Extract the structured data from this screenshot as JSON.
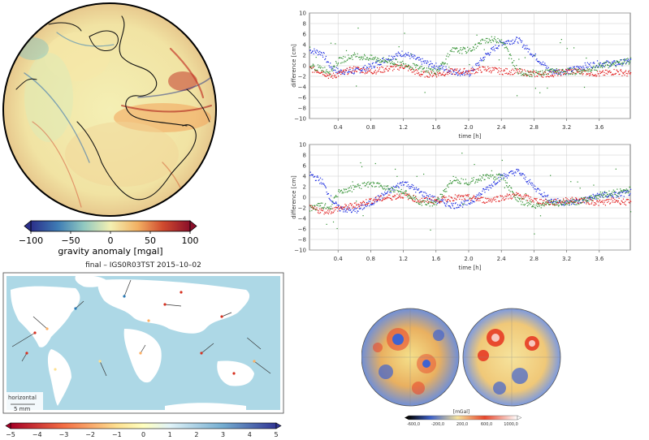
{
  "gravity_globe": {
    "colorbar_ticks": [
      "−100",
      "−50",
      "0",
      "50",
      "100"
    ],
    "colorbar_label": "gravity anomaly [mgal]",
    "colors": [
      "#2b2f8a",
      "#3e7cb5",
      "#8fc8c0",
      "#f3f0b2",
      "#f2b163",
      "#d04a2e",
      "#8b0f2a"
    ]
  },
  "chart_top": {
    "ylabel": "difference [cm]",
    "xlabel": "time [h]",
    "y_ticks": [
      "10",
      "8",
      "6",
      "4",
      "2",
      "0",
      "−2",
      "−4",
      "−6",
      "−8",
      "−10"
    ],
    "x_ticks": [
      "0.4",
      "0.8",
      "1.2",
      "1.6",
      "2.0",
      "2.4",
      "2.8",
      "3.2",
      "3.6"
    ]
  },
  "chart_bottom": {
    "ylabel": "difference [cm]",
    "xlabel": "time [h]",
    "y_ticks": [
      "10",
      "8",
      "6",
      "4",
      "2",
      "0",
      "−2",
      "−4",
      "−6",
      "−8",
      "−10"
    ],
    "x_ticks": [
      "0.4",
      "0.8",
      "1.2",
      "1.6",
      "2.0",
      "2.4",
      "2.8",
      "3.2",
      "3.6"
    ]
  },
  "chart_data": [
    {
      "type": "scatter",
      "ylabel": "difference [cm]",
      "xlabel": "time [h]",
      "xlim": [
        0.05,
        3.98
      ],
      "ylim": [
        -10,
        10
      ],
      "grid": true,
      "series": [
        {
          "color": "#1f2fe0",
          "x": [
            0.05,
            0.2,
            0.3,
            0.4,
            0.6,
            0.8,
            1.0,
            1.2,
            1.4,
            1.6,
            1.8,
            2.0,
            2.2,
            2.4,
            2.6,
            2.8,
            3.0,
            3.2,
            3.4,
            3.6,
            3.8,
            3.98
          ],
          "y": [
            3,
            2.5,
            0,
            -1,
            -1,
            0,
            1.5,
            2.5,
            1,
            0,
            -1,
            -1.5,
            2,
            4.5,
            5,
            2,
            -1,
            -1,
            0,
            0.5,
            0.5,
            1
          ]
        },
        {
          "color": "#e01b1b",
          "x": [
            0.05,
            0.2,
            0.3,
            0.4,
            0.6,
            0.8,
            1.0,
            1.2,
            1.4,
            1.6,
            1.8,
            2.0,
            2.2,
            2.4,
            2.6,
            2.8,
            3.0,
            3.2,
            3.4,
            3.6,
            3.8,
            3.98
          ],
          "y": [
            -0.5,
            -1,
            -2,
            -1.5,
            -0.5,
            -1,
            -0.5,
            0,
            -1.5,
            -1.5,
            -1,
            -1,
            -0.5,
            -1,
            -1,
            -1.5,
            -1.5,
            -1,
            -1,
            -1.5,
            -1,
            -1.5
          ]
        },
        {
          "color": "#2f8f2f",
          "x": [
            0.05,
            0.2,
            0.3,
            0.4,
            0.6,
            0.8,
            1.0,
            1.2,
            1.4,
            1.6,
            1.8,
            2.0,
            2.2,
            2.4,
            2.6,
            2.8,
            3.0,
            3.2,
            3.4,
            3.6,
            3.8,
            3.98
          ],
          "y": [
            0,
            -0.5,
            -1,
            1,
            2,
            1.5,
            1,
            0.5,
            -0.5,
            -1,
            3,
            3,
            5,
            5,
            -1,
            -1.5,
            -1,
            -1,
            -1,
            0,
            0.5,
            1
          ]
        }
      ]
    },
    {
      "type": "scatter",
      "ylabel": "difference [cm]",
      "xlabel": "time [h]",
      "xlim": [
        0.05,
        3.98
      ],
      "ylim": [
        -10,
        10
      ],
      "grid": true,
      "series": [
        {
          "color": "#1f2fe0",
          "x": [
            0.05,
            0.2,
            0.3,
            0.4,
            0.6,
            0.8,
            1.0,
            1.2,
            1.4,
            1.6,
            1.8,
            2.0,
            2.2,
            2.4,
            2.6,
            2.8,
            3.0,
            3.2,
            3.4,
            3.6,
            3.8,
            3.98
          ],
          "y": [
            4.5,
            3,
            0,
            -2,
            -2.5,
            -1,
            1,
            3,
            1,
            -0.5,
            -1.5,
            -1,
            1.5,
            4,
            5,
            2,
            -0.5,
            -1,
            -0.5,
            0.5,
            0.5,
            1
          ]
        },
        {
          "color": "#e01b1b",
          "x": [
            0.05,
            0.2,
            0.3,
            0.4,
            0.6,
            0.8,
            1.0,
            1.2,
            1.4,
            1.6,
            1.8,
            2.0,
            2.2,
            2.4,
            2.6,
            2.8,
            3.0,
            3.2,
            3.4,
            3.6,
            3.8,
            3.98
          ],
          "y": [
            -2,
            -2.5,
            -2.5,
            -2,
            -1.5,
            -0.5,
            0,
            0.5,
            -0.5,
            -0.5,
            0,
            0,
            -0.5,
            0,
            0.5,
            -0.5,
            -1,
            -0.5,
            -0.5,
            -1,
            -0.5,
            -1
          ]
        },
        {
          "color": "#2f8f2f",
          "x": [
            0.05,
            0.2,
            0.3,
            0.4,
            0.6,
            0.8,
            1.0,
            1.2,
            1.4,
            1.6,
            1.8,
            2.0,
            2.2,
            2.4,
            2.6,
            2.8,
            3.0,
            3.2,
            3.4,
            3.6,
            3.8,
            3.98
          ],
          "y": [
            -2,
            -1.5,
            -2,
            1,
            2,
            2.5,
            2,
            1,
            -1,
            -1,
            3.5,
            3,
            4,
            4,
            -0.5,
            -1.5,
            -1,
            -1,
            -0.5,
            0.5,
            1,
            1.5
          ]
        }
      ]
    }
  ],
  "velocity_map": {
    "title": "final – IGS0R03TST 2015–10–02",
    "legend_label": "horizontal",
    "legend_scale": "5 mm",
    "colorbar_ticks": [
      "−5",
      "−4",
      "−3",
      "−2",
      "−1",
      "0",
      "1",
      "2",
      "3",
      "4",
      "5"
    ]
  },
  "moon_maps": {
    "unit": "[mGal]",
    "colorbar_ticks": [
      "-600,0",
      "-200,0",
      "200,0",
      "600,0",
      "1000,0"
    ]
  }
}
